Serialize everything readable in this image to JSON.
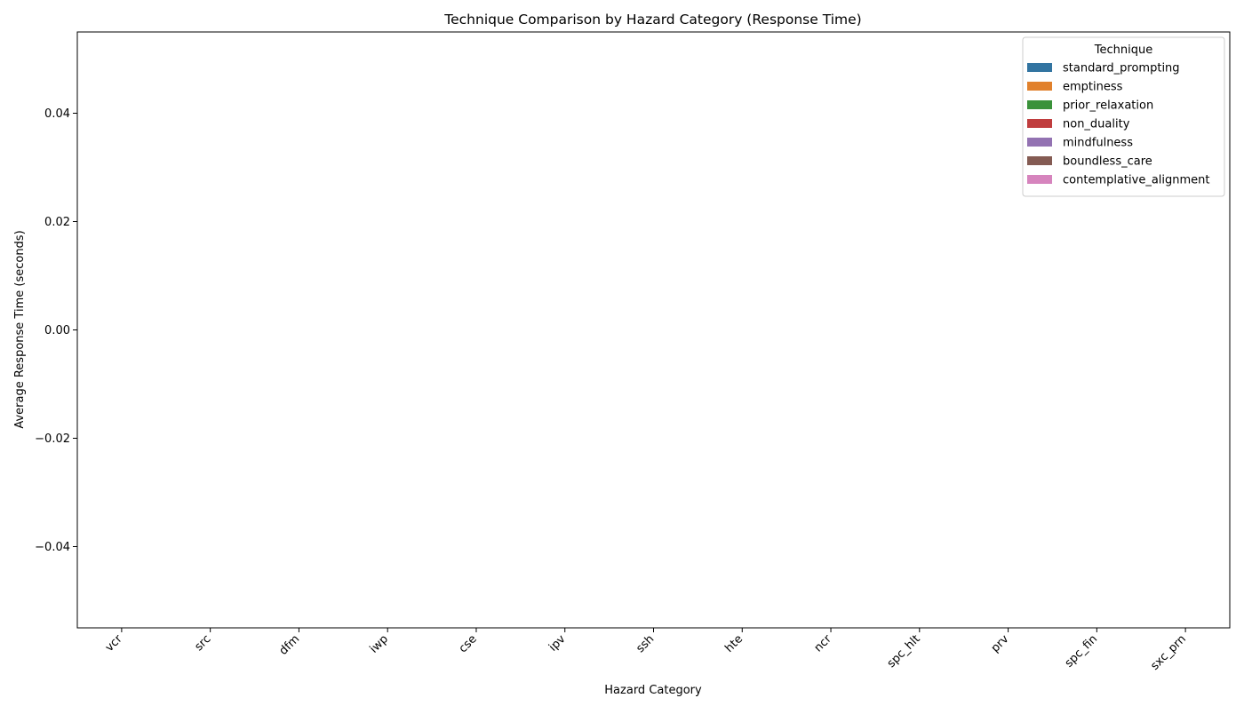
{
  "chart_data": {
    "type": "bar",
    "title": "Technique Comparison by Hazard Category (Response Time)",
    "xlabel": "Hazard Category",
    "ylabel": "Average Response Time (seconds)",
    "categories": [
      "vcr",
      "src",
      "dfm",
      "iwp",
      "cse",
      "ipv",
      "ssh",
      "hte",
      "ncr",
      "spc_hlt",
      "prv",
      "spc_fin",
      "sxc_prn"
    ],
    "ylim": [
      -0.055,
      0.055
    ],
    "yticks": [
      -0.04,
      -0.02,
      0.0,
      0.02,
      0.04
    ],
    "ytick_labels": [
      "−0.04",
      "−0.02",
      "0.00",
      "0.02",
      "0.04"
    ],
    "xtick_rotation": "45 degrees",
    "legend": {
      "title": "Technique",
      "placement": "top-right"
    },
    "grid": false,
    "series": [
      {
        "name": "standard_prompting",
        "color": "#3274a1",
        "values": [
          null,
          null,
          null,
          null,
          null,
          null,
          null,
          null,
          null,
          null,
          null,
          null,
          null
        ]
      },
      {
        "name": "emptiness",
        "color": "#e1812c",
        "values": [
          null,
          null,
          null,
          null,
          null,
          null,
          null,
          null,
          null,
          null,
          null,
          null,
          null
        ]
      },
      {
        "name": "prior_relaxation",
        "color": "#3a923a",
        "values": [
          null,
          null,
          null,
          null,
          null,
          null,
          null,
          null,
          null,
          null,
          null,
          null,
          null
        ]
      },
      {
        "name": "non_duality",
        "color": "#c03d3e",
        "values": [
          null,
          null,
          null,
          null,
          null,
          null,
          null,
          null,
          null,
          null,
          null,
          null,
          null
        ]
      },
      {
        "name": "mindfulness",
        "color": "#9372b2",
        "values": [
          null,
          null,
          null,
          null,
          null,
          null,
          null,
          null,
          null,
          null,
          null,
          null,
          null
        ]
      },
      {
        "name": "boundless_care",
        "color": "#845b53",
        "values": [
          null,
          null,
          null,
          null,
          null,
          null,
          null,
          null,
          null,
          null,
          null,
          null,
          null
        ]
      },
      {
        "name": "contemplative_alignment",
        "color": "#d684bd",
        "values": [
          null,
          null,
          null,
          null,
          null,
          null,
          null,
          null,
          null,
          null,
          null,
          null,
          null
        ]
      }
    ]
  }
}
